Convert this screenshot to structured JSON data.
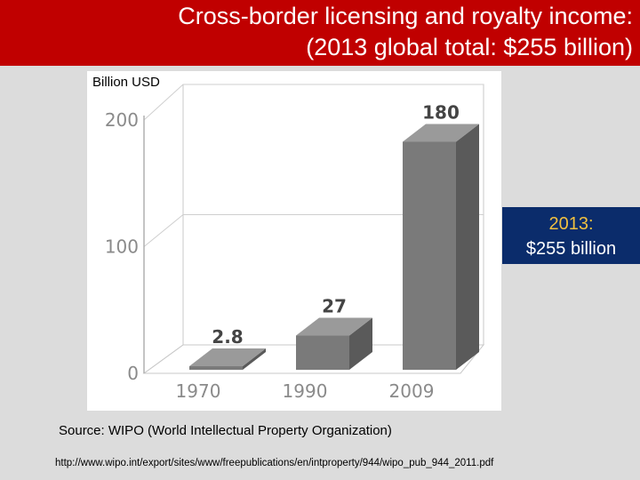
{
  "title": {
    "line1": "Cross-border licensing and royalty income:",
    "line2": "(2013 global total: $255 billion)"
  },
  "unit_label": "Billion USD",
  "callout": {
    "year": "2013:",
    "value": "$255 billion"
  },
  "source": "Source: WIPO (World Intellectual Property Organization)",
  "url": "http://www.wipo.int/export/sites/www/freepublications/en/intproperty/944/wipo_pub_944_2011.pdf",
  "colors": {
    "title_bg": "#c00000",
    "callout_bg": "#0b2c6b",
    "callout_year": "#f0c040",
    "bar": "#7a7a7a"
  },
  "chart_data": {
    "type": "bar",
    "categories": [
      "1970",
      "1990",
      "2009"
    ],
    "values": [
      2.8,
      27,
      180
    ],
    "value_labels": [
      "2.8",
      "27",
      "180"
    ],
    "ylabel": "Billion USD",
    "ylim": [
      0,
      200
    ],
    "yticks": [
      0,
      100,
      200
    ],
    "grid": true,
    "style": "3d"
  }
}
